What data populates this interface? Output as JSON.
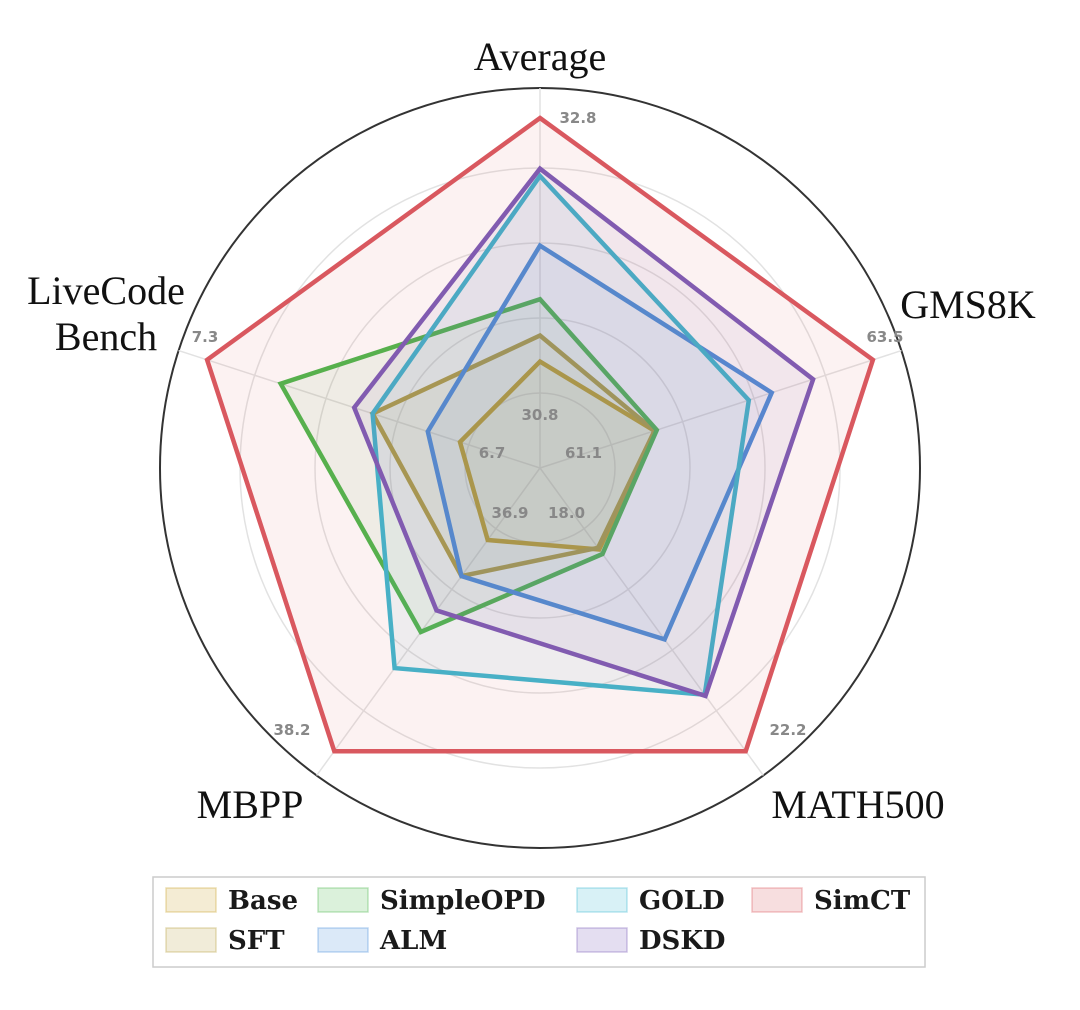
{
  "chart_data": {
    "type": "radar",
    "axes": [
      "Average",
      "GMS8K",
      "MATH500",
      "MBPP",
      "LiveCodeBench"
    ],
    "axis_titles": {
      "Average": [
        "Average"
      ],
      "GMS8K": [
        "GMS8K"
      ],
      "MATH500": [
        "MATH500"
      ],
      "MBPP": [
        "MBPP"
      ],
      "LiveCodeBench": [
        "LiveCode",
        "Bench"
      ]
    },
    "axis_ranges": {
      "Average": [
        30.8,
        32.8
      ],
      "GMS8K": [
        61.1,
        63.5
      ],
      "MATH500": [
        18.0,
        22.2
      ],
      "MBPP": [
        36.9,
        38.2
      ],
      "LiveCodeBench": [
        6.7,
        7.3
      ]
    },
    "tick_labels": {
      "Average": [
        "30.8",
        "32.8"
      ],
      "GMS8K": [
        "61.1",
        "63.5"
      ],
      "MATH500": [
        "18.0",
        "22.2"
      ],
      "MBPP": [
        "36.9",
        "38.2"
      ],
      "LiveCodeBench": [
        "6.7",
        "7.3"
      ]
    },
    "series": [
      {
        "name": "Base",
        "color": "#c9a227",
        "values": [
          31.12,
          61.6,
          18.59,
          37.03,
          6.75
        ]
      },
      {
        "name": "SFT",
        "color": "#b8a040",
        "values": [
          31.3,
          61.6,
          18.56,
          37.23,
          6.94
        ]
      },
      {
        "name": "SimpleOPD",
        "color": "#4cb84c",
        "values": [
          31.55,
          61.62,
          18.67,
          37.54,
          7.14
        ]
      },
      {
        "name": "ALM",
        "color": "#4a8fdc",
        "values": [
          31.92,
          62.62,
          20.2,
          37.23,
          6.82
        ]
      },
      {
        "name": "GOLD",
        "color": "#3cb8d0",
        "values": [
          32.4,
          62.42,
          21.19,
          37.74,
          6.94
        ]
      },
      {
        "name": "DSKD",
        "color": "#7a5cb8",
        "values": [
          32.45,
          62.98,
          21.21,
          37.42,
          6.98
        ]
      },
      {
        "name": "SimCT",
        "color": "#d9585f",
        "values": [
          32.8,
          63.5,
          22.2,
          38.2,
          7.3
        ]
      }
    ],
    "legend": {
      "placement": "bottom",
      "order": [
        "Base",
        "SimpleOPD",
        "GOLD",
        "SimCT",
        "SFT",
        "ALM",
        "DSKD"
      ]
    },
    "grid": true
  }
}
